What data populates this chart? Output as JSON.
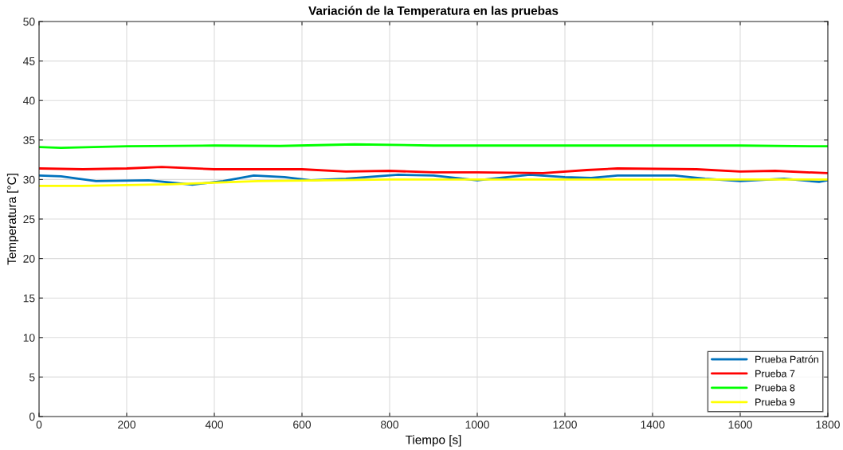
{
  "chart_data": {
    "type": "line",
    "title": "Variación de la Temperatura en las pruebas",
    "xlabel": "Tiempo [s]",
    "ylabel": "Temperatura [°C]",
    "xlim": [
      0,
      1800
    ],
    "xticks": [
      0,
      200,
      400,
      600,
      800,
      1000,
      1200,
      1400,
      1600,
      1800
    ],
    "ylim": [
      0,
      50
    ],
    "yticks": [
      0,
      5,
      10,
      15,
      20,
      25,
      30,
      35,
      40,
      45,
      50
    ],
    "grid": true,
    "legend": "bottom right",
    "marker": "none",
    "line_style": "solid",
    "series": [
      {
        "name": "Prueba Patrón",
        "color": "#0072bd",
        "x": [
          0,
          50,
          130,
          250,
          350,
          420,
          490,
          560,
          620,
          700,
          820,
          900,
          1000,
          1120,
          1200,
          1260,
          1320,
          1450,
          1520,
          1600,
          1700,
          1780,
          1800
        ],
        "values": [
          30.5,
          30.4,
          29.8,
          29.9,
          29.35,
          29.8,
          30.5,
          30.3,
          29.9,
          30.1,
          30.6,
          30.5,
          29.9,
          30.6,
          30.3,
          30.2,
          30.5,
          30.5,
          30.1,
          29.8,
          30.1,
          29.7,
          29.9
        ]
      },
      {
        "name": "Prueba 7",
        "color": "#ff0000",
        "x": [
          0,
          100,
          200,
          280,
          400,
          600,
          700,
          800,
          900,
          1000,
          1150,
          1250,
          1320,
          1500,
          1600,
          1680,
          1800
        ],
        "values": [
          31.4,
          31.3,
          31.4,
          31.6,
          31.3,
          31.3,
          31.0,
          31.1,
          30.9,
          30.9,
          30.8,
          31.2,
          31.4,
          31.3,
          31.0,
          31.1,
          30.8
        ]
      },
      {
        "name": "Prueba 8",
        "color": "#00ff00",
        "x": [
          0,
          50,
          200,
          400,
          550,
          720,
          900,
          1200,
          1600,
          1800
        ],
        "values": [
          34.1,
          34.0,
          34.2,
          34.3,
          34.25,
          34.45,
          34.3,
          34.3,
          34.3,
          34.2
        ]
      },
      {
        "name": "Prueba 9",
        "color": "#ffff00",
        "x": [
          0,
          100,
          300,
          500,
          800,
          1000,
          1800
        ],
        "values": [
          29.2,
          29.2,
          29.4,
          29.8,
          30.0,
          30.0,
          30.0
        ]
      }
    ]
  }
}
